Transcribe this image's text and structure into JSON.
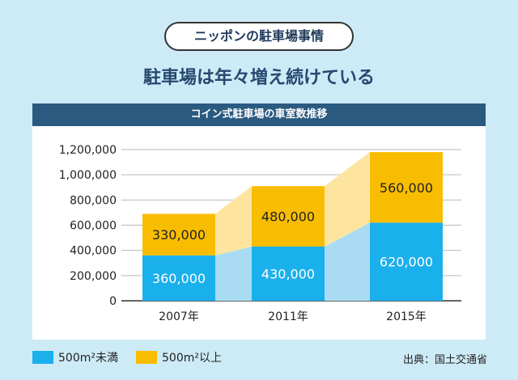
{
  "header": {
    "pill_label": "ニッポンの駐車場事情",
    "headline": "駐車場は年々増え続けている"
  },
  "chart_data": {
    "type": "bar",
    "stacked": true,
    "title": "コイン式駐車場の車室数推移",
    "categories": [
      "2007年",
      "2011年",
      "2015年"
    ],
    "series": [
      {
        "name": "500m²未満",
        "values": [
          360000,
          430000,
          620000
        ],
        "labels": [
          "360,000",
          "430,000",
          "620,000"
        ],
        "color": "#1ab0ec",
        "band_color": "#a9dcf3"
      },
      {
        "name": "500m²以上",
        "values": [
          330000,
          480000,
          560000
        ],
        "labels": [
          "330,000",
          "480,000",
          "560,000"
        ],
        "color": "#f8bd00",
        "band_color": "#fde5a0"
      }
    ],
    "yticks": [
      0,
      200000,
      400000,
      600000,
      800000,
      1000000,
      1200000
    ],
    "ytick_labels": [
      "0",
      "200,000",
      "400,000",
      "600,000",
      "800,000",
      "1,000,000",
      "1,200,000"
    ],
    "ylim": [
      0,
      1200000
    ],
    "xlabel": "",
    "ylabel": "",
    "grid": true,
    "legend_position": "bottom-left"
  },
  "legend": {
    "under_label": "500m²未満",
    "over_label": "500m²以上"
  },
  "source": "出典：国土交通省"
}
